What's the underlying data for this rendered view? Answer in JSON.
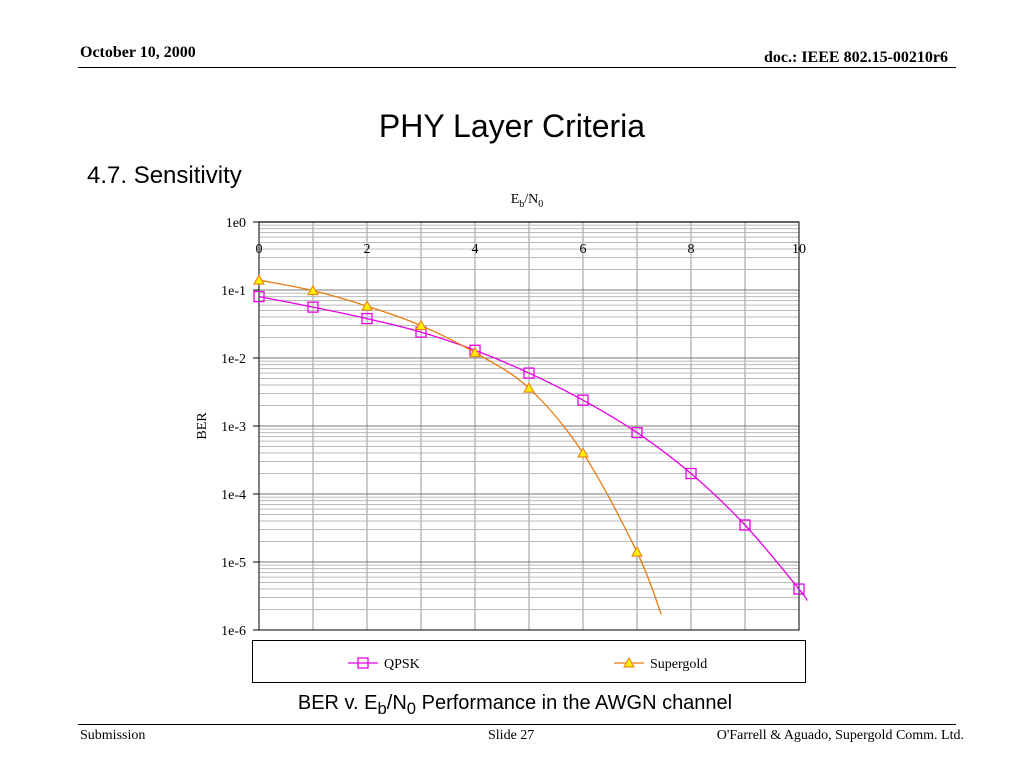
{
  "header": {
    "date": "October 10, 2000",
    "doc": "doc.: IEEE 802.15-00210r6"
  },
  "slide": {
    "title": "PHY Layer Criteria",
    "subtitle": "4.7. Sensitivity",
    "caption_pre": "BER v. E",
    "caption_sub1": "b",
    "caption_mid": "/N",
    "caption_sub2": "0",
    "caption_post": " Performance in the AWGN channel"
  },
  "footer": {
    "left": "Submission",
    "center": "Slide 27",
    "right": "O'Farrell & Aguado, Supergold Comm. Ltd."
  },
  "colors": {
    "qpsk": "#e600e6",
    "supergold_line": "#e87a10",
    "supergold_marker": "#ffee00",
    "grid": "#999999"
  },
  "chart_data": {
    "type": "line",
    "title": "",
    "xlabel_main": "E",
    "xlabel_sub1": "b",
    "xlabel_mid": "/N",
    "xlabel_sub2": "0",
    "ylabel": "BER",
    "xlim": [
      0,
      10
    ],
    "x_ticks": [
      "0",
      "2",
      "4",
      "6",
      "8",
      "10"
    ],
    "y_scale": "log",
    "ylim_exp": [
      -6,
      0
    ],
    "y_ticks": [
      "1e0",
      "1e-1",
      "1e-2",
      "1e-3",
      "1e-4",
      "1e-5",
      "1e-6"
    ],
    "grid": true,
    "legend": "bottom",
    "series": [
      {
        "name": "QPSK",
        "marker": "square",
        "x": [
          0,
          1,
          2,
          3,
          4,
          5,
          6,
          7,
          8,
          9,
          10
        ],
        "y": [
          0.08,
          0.056,
          0.038,
          0.024,
          0.013,
          0.006,
          0.0024,
          0.0008,
          0.0002,
          3.5e-05,
          4e-06
        ]
      },
      {
        "name": "Supergold",
        "marker": "triangle",
        "x": [
          0,
          1,
          2,
          3,
          4,
          5,
          6,
          7
        ],
        "y": [
          0.14,
          0.098,
          0.058,
          0.03,
          0.012,
          0.0036,
          0.0004,
          1.4e-05
        ]
      }
    ]
  }
}
